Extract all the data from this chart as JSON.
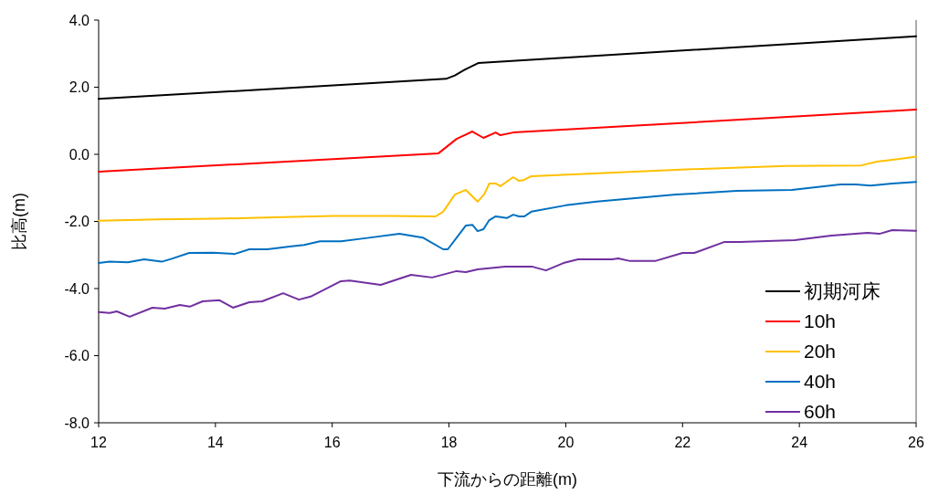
{
  "chart_data": {
    "type": "line",
    "xlabel": "下流からの距離(m)",
    "ylabel": "比高(m)",
    "xlim": [
      12,
      26
    ],
    "xticks": [
      12,
      14,
      16,
      18,
      20,
      22,
      24,
      26
    ],
    "ylim": [
      -8,
      4
    ],
    "yticks": [
      {
        "value": -8,
        "label": "-8.0"
      },
      {
        "value": -6,
        "label": "-6.0"
      },
      {
        "value": -4,
        "label": "-4.0"
      },
      {
        "value": -2,
        "label": "-2.0"
      },
      {
        "value": 0,
        "label": "0.0"
      },
      {
        "value": 2,
        "label": "2.0"
      },
      {
        "value": 4,
        "label": "4.0"
      }
    ],
    "grid": false,
    "legend": "bottom right",
    "marker": "none",
    "line_style": "solid",
    "series": [
      {
        "name": "初期河床",
        "color": "#000000",
        "x": [
          12,
          17.95,
          18.1,
          18.3,
          18.5,
          26
        ],
        "values": [
          1.65,
          2.25,
          2.35,
          2.55,
          2.72,
          3.52
        ]
      },
      {
        "name": "10h",
        "color": "#ff0000",
        "x": [
          12,
          17.82,
          18.13,
          18.4,
          18.59,
          18.8,
          18.88,
          19.1,
          26
        ],
        "values": [
          -0.52,
          0.03,
          0.46,
          0.68,
          0.49,
          0.65,
          0.57,
          0.65,
          1.33
        ]
      },
      {
        "name": "20h",
        "color": "#ffc000",
        "x": [
          12,
          13,
          14,
          15,
          16,
          17,
          17.77,
          17.9,
          18.1,
          18.29,
          18.49,
          18.6,
          18.69,
          18.8,
          18.88,
          19.1,
          19.2,
          19.29,
          19.41,
          21.89,
          23.76,
          25.06,
          25.33,
          25.69,
          26
        ],
        "values": [
          -1.98,
          -1.94,
          -1.92,
          -1.88,
          -1.84,
          -1.84,
          -1.85,
          -1.71,
          -1.2,
          -1.06,
          -1.41,
          -1.2,
          -0.87,
          -0.87,
          -0.95,
          -0.68,
          -0.79,
          -0.76,
          -0.65,
          -0.46,
          -0.35,
          -0.33,
          -0.22,
          -0.14,
          -0.07
        ]
      },
      {
        "name": "40h",
        "color": "#0070c0",
        "x": [
          12,
          12.19,
          12.5,
          12.78,
          13.08,
          13.24,
          13.55,
          13.96,
          14.33,
          14.58,
          14.89,
          15.27,
          15.52,
          15.79,
          16.15,
          16.57,
          17.15,
          17.55,
          17.9,
          17.98,
          18.29,
          18.4,
          18.49,
          18.59,
          18.69,
          18.8,
          18.99,
          19.1,
          19.2,
          19.29,
          19.41,
          20,
          20.53,
          21.89,
          22.93,
          23.87,
          24.7,
          24.97,
          25.22,
          25.59,
          26
        ],
        "values": [
          -3.24,
          -3.2,
          -3.22,
          -3.13,
          -3.2,
          -3.12,
          -2.94,
          -2.93,
          -2.97,
          -2.83,
          -2.83,
          -2.75,
          -2.7,
          -2.59,
          -2.59,
          -2.5,
          -2.37,
          -2.48,
          -2.83,
          -2.83,
          -2.12,
          -2.1,
          -2.29,
          -2.23,
          -1.96,
          -1.85,
          -1.9,
          -1.8,
          -1.85,
          -1.85,
          -1.71,
          -1.52,
          -1.41,
          -1.2,
          -1.09,
          -1.06,
          -0.9,
          -0.9,
          -0.93,
          -0.87,
          -0.82
        ]
      },
      {
        "name": "60h",
        "color": "#7030a0",
        "x": [
          12,
          12.19,
          12.31,
          12.53,
          12.92,
          13.13,
          13.39,
          13.56,
          13.78,
          14.07,
          14.3,
          14.58,
          14.8,
          15.16,
          15.43,
          15.63,
          16.15,
          16.3,
          16.83,
          17.35,
          17.71,
          18.13,
          18.29,
          18.49,
          18.96,
          19.43,
          19.66,
          19.96,
          20.21,
          20.79,
          20.9,
          21.1,
          21.53,
          22,
          22.2,
          22.72,
          22.98,
          23.92,
          24.55,
          25.17,
          25.37,
          25.59,
          26
        ],
        "values": [
          -4.7,
          -4.73,
          -4.68,
          -4.84,
          -4.57,
          -4.6,
          -4.49,
          -4.54,
          -4.38,
          -4.35,
          -4.57,
          -4.41,
          -4.38,
          -4.14,
          -4.33,
          -4.24,
          -3.78,
          -3.76,
          -3.89,
          -3.59,
          -3.67,
          -3.48,
          -3.51,
          -3.43,
          -3.35,
          -3.35,
          -3.46,
          -3.24,
          -3.13,
          -3.13,
          -3.1,
          -3.18,
          -3.18,
          -2.94,
          -2.94,
          -2.61,
          -2.61,
          -2.56,
          -2.42,
          -2.34,
          -2.37,
          -2.26,
          -2.28
        ]
      }
    ]
  }
}
